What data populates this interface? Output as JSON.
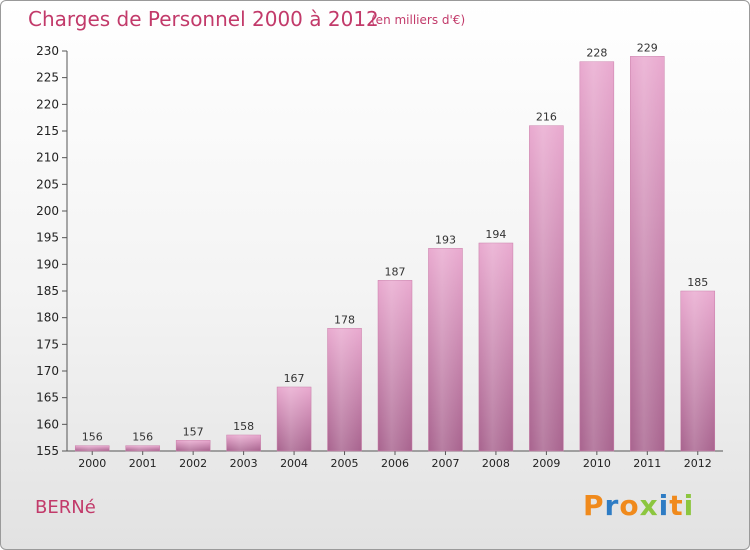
{
  "header": {
    "title": "Charges de Personnel 2000 à 2012",
    "subtitle": "(en milliers d'€)"
  },
  "footer": {
    "commune": "BERNé",
    "logo": "Proxiti"
  },
  "colors": {
    "title": "#c23a6a",
    "bar_light": "#e9a9cf",
    "bar_dark": "#a8638e",
    "logo_letters": [
      "#f08a1c",
      "#2e7cc4",
      "#f08a1c",
      "#8cc63f",
      "#2e7cc4",
      "#f08a1c",
      "#8cc63f"
    ]
  },
  "chart_data": {
    "type": "bar",
    "categories": [
      "2000",
      "2001",
      "2002",
      "2003",
      "2004",
      "2005",
      "2006",
      "2007",
      "2008",
      "2009",
      "2010",
      "2011",
      "2012"
    ],
    "values": [
      156,
      156,
      157,
      158,
      167,
      178,
      187,
      193,
      194,
      216,
      228,
      229,
      185
    ],
    "ylim": [
      155,
      230
    ],
    "yticks": [
      155,
      160,
      165,
      170,
      175,
      180,
      185,
      190,
      195,
      200,
      205,
      210,
      215,
      220,
      225,
      230
    ],
    "grid": false,
    "legend": "none"
  }
}
